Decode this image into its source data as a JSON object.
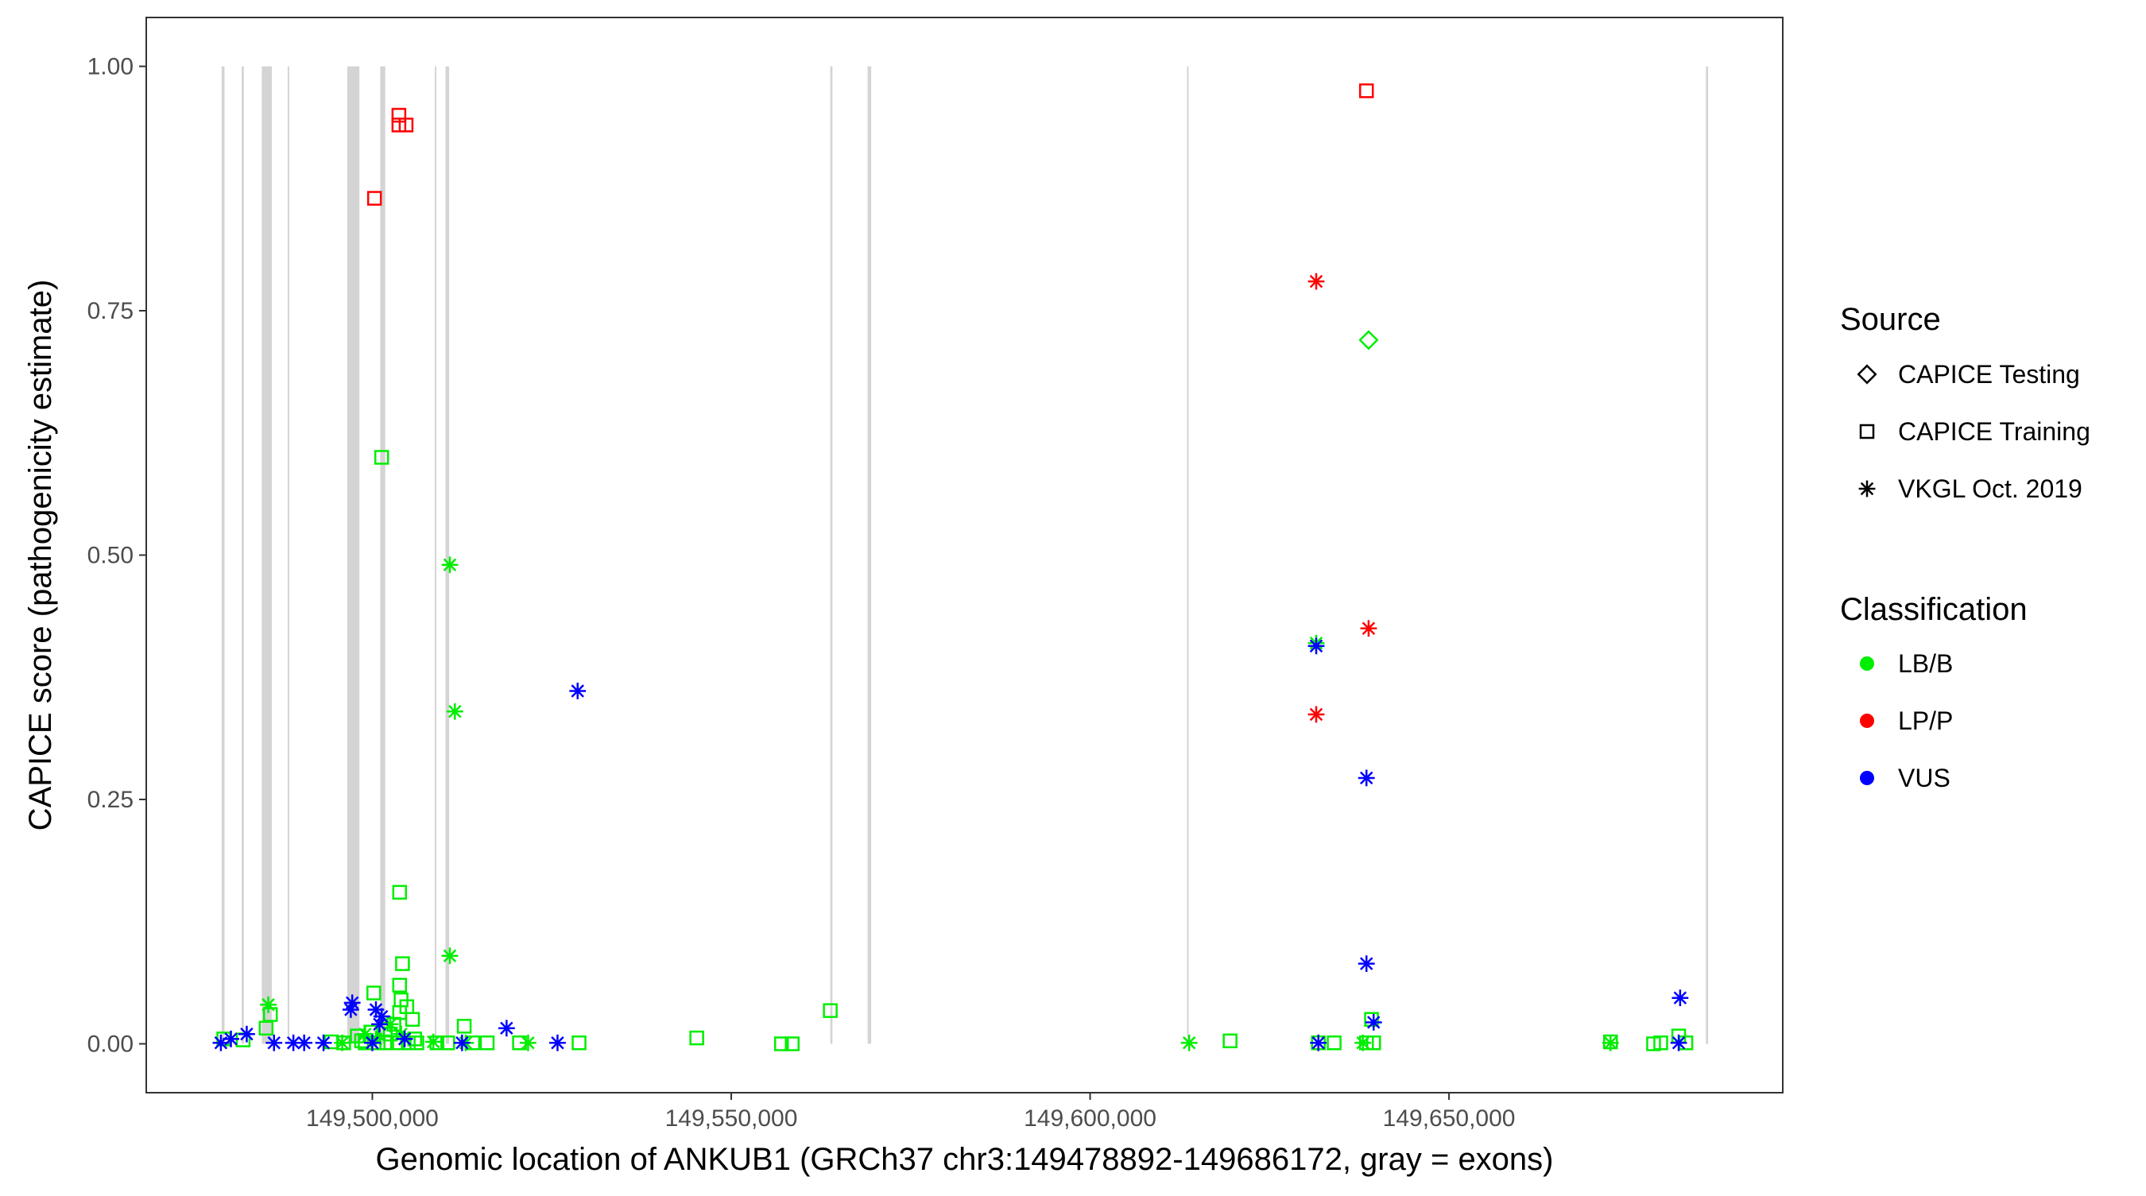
{
  "chart_data": {
    "type": "scatter",
    "xlabel": "Genomic location of ANKUB1 (GRCh37 chr3:149478892-149686172, gray = exons)",
    "ylabel": "CAPICE score (pathogenicity estimate)",
    "xlim": [
      149468500,
      149696500
    ],
    "ylim": [
      -0.05,
      1.05
    ],
    "x_ticks": [
      149500000,
      149550000,
      149600000,
      149650000
    ],
    "x_tick_labels": [
      "149,500,000",
      "149,550,000",
      "149,600,000",
      "149,650,000"
    ],
    "y_ticks": [
      0,
      0.25,
      0.5,
      0.75,
      1.0
    ],
    "y_tick_labels": [
      "0.00",
      "0.25",
      "0.50",
      "0.75",
      "1.00"
    ],
    "grid": false,
    "panel_border": true,
    "exons": [
      [
        149479000,
        149479400
      ],
      [
        149481800,
        149482100
      ],
      [
        149484600,
        149486000
      ],
      [
        149488200,
        149488400
      ],
      [
        149496500,
        149498200
      ],
      [
        149501100,
        149501800
      ],
      [
        149508700,
        149508900
      ],
      [
        149510200,
        149510700
      ],
      [
        149563800,
        149564100
      ],
      [
        149569000,
        149569500
      ],
      [
        149613500,
        149613700
      ],
      [
        149685800,
        149686100
      ]
    ],
    "legend": {
      "position": "right",
      "source_title": "Source",
      "source_items": [
        {
          "label": "CAPICE Testing",
          "shape": "diamond"
        },
        {
          "label": "CAPICE Training",
          "shape": "square"
        },
        {
          "label": "VKGL Oct. 2019",
          "shape": "asterisk"
        }
      ],
      "class_title": "Classification",
      "class_items": [
        {
          "label": "LB/B",
          "color": "#00ee00"
        },
        {
          "label": "LP/P",
          "color": "#ff0000"
        },
        {
          "label": "VUS",
          "color": "#0000ff"
        }
      ]
    },
    "series": [
      {
        "source": "CAPICE Training",
        "classification": "LP/P",
        "points": [
          [
            149503700,
            0.95
          ],
          [
            149503700,
            0.94
          ],
          [
            149504700,
            0.94
          ],
          [
            149500300,
            0.865
          ],
          [
            149638500,
            0.975
          ]
        ]
      },
      {
        "source": "CAPICE Training",
        "classification": "LB/B",
        "points": [
          [
            149501300,
            0.6
          ],
          [
            149503800,
            0.155
          ],
          [
            149504200,
            0.082
          ],
          [
            149503800,
            0.06
          ],
          [
            149500200,
            0.052
          ],
          [
            149504000,
            0.045
          ],
          [
            149504800,
            0.038
          ],
          [
            149503800,
            0.032
          ],
          [
            149485800,
            0.03
          ],
          [
            149485200,
            0.016
          ],
          [
            149505600,
            0.025
          ],
          [
            149503000,
            0.02
          ],
          [
            149512800,
            0.018
          ],
          [
            149501800,
            0.015
          ],
          [
            149499800,
            0.012
          ],
          [
            149502500,
            0.01
          ],
          [
            149497900,
            0.008
          ],
          [
            149505900,
            0.005
          ],
          [
            149479300,
            0.005
          ],
          [
            149482000,
            0.004
          ],
          [
            149498500,
            0.003
          ],
          [
            149494300,
            0.002
          ],
          [
            149496000,
            0.001
          ],
          [
            149499000,
            0.001
          ],
          [
            149500800,
            0.001
          ],
          [
            149502000,
            0.001
          ],
          [
            149503500,
            0.001
          ],
          [
            149505000,
            0.001
          ],
          [
            149506200,
            0.001
          ],
          [
            149509000,
            0.001
          ],
          [
            149510500,
            0.001
          ],
          [
            149514000,
            0.001
          ],
          [
            149516000,
            0.001
          ],
          [
            149520500,
            0.001
          ],
          [
            149528800,
            0.001
          ],
          [
            149545200,
            0.006
          ],
          [
            149557000,
            0.0
          ],
          [
            149558500,
            0.0
          ],
          [
            149563800,
            0.034
          ],
          [
            149619500,
            0.003
          ],
          [
            149631800,
            0.001
          ],
          [
            149634000,
            0.001
          ],
          [
            149638500,
            0.001
          ],
          [
            149639500,
            0.001
          ],
          [
            149639200,
            0.025
          ],
          [
            149672500,
            0.002
          ],
          [
            149678500,
            0.0
          ],
          [
            149679500,
            0.001
          ],
          [
            149682000,
            0.008
          ],
          [
            149683000,
            0.001
          ]
        ]
      },
      {
        "source": "CAPICE Testing",
        "classification": "LB/B",
        "points": [
          [
            149638800,
            0.72
          ]
        ]
      },
      {
        "source": "VKGL Oct. 2019",
        "classification": "LP/P",
        "points": [
          [
            149631500,
            0.78
          ],
          [
            149638800,
            0.425
          ],
          [
            149631500,
            0.337
          ]
        ]
      },
      {
        "source": "VKGL Oct. 2019",
        "classification": "LB/B",
        "points": [
          [
            149510800,
            0.49
          ],
          [
            149511500,
            0.34
          ],
          [
            149510800,
            0.09
          ],
          [
            149485500,
            0.04
          ],
          [
            149631500,
            0.41
          ],
          [
            149495800,
            0.001
          ],
          [
            149499000,
            0.01
          ],
          [
            149500500,
            0.005
          ],
          [
            149502500,
            0.02
          ],
          [
            149504000,
            0.01
          ],
          [
            149508500,
            0.002
          ],
          [
            149513000,
            0.001
          ],
          [
            149521700,
            0.001
          ],
          [
            149613800,
            0.001
          ],
          [
            149638000,
            0.001
          ],
          [
            149672500,
            0.001
          ]
        ]
      },
      {
        "source": "VKGL Oct. 2019",
        "classification": "VUS",
        "points": [
          [
            149528600,
            0.361
          ],
          [
            149631500,
            0.407
          ],
          [
            149638500,
            0.272
          ],
          [
            149638500,
            0.082
          ],
          [
            149682200,
            0.047
          ],
          [
            149497200,
            0.042
          ],
          [
            149497000,
            0.035
          ],
          [
            149500500,
            0.035
          ],
          [
            149501300,
            0.028
          ],
          [
            149501000,
            0.02
          ],
          [
            149639500,
            0.022
          ],
          [
            149518700,
            0.016
          ],
          [
            149482500,
            0.01
          ],
          [
            149480300,
            0.005
          ],
          [
            149478900,
            0.001
          ],
          [
            149486300,
            0.001
          ],
          [
            149489000,
            0.001
          ],
          [
            149490500,
            0.001
          ],
          [
            149493200,
            0.001
          ],
          [
            149500000,
            0.001
          ],
          [
            149504500,
            0.005
          ],
          [
            149512500,
            0.001
          ],
          [
            149525800,
            0.001
          ],
          [
            149631800,
            0.001
          ],
          [
            149682000,
            0.001
          ]
        ]
      }
    ]
  }
}
